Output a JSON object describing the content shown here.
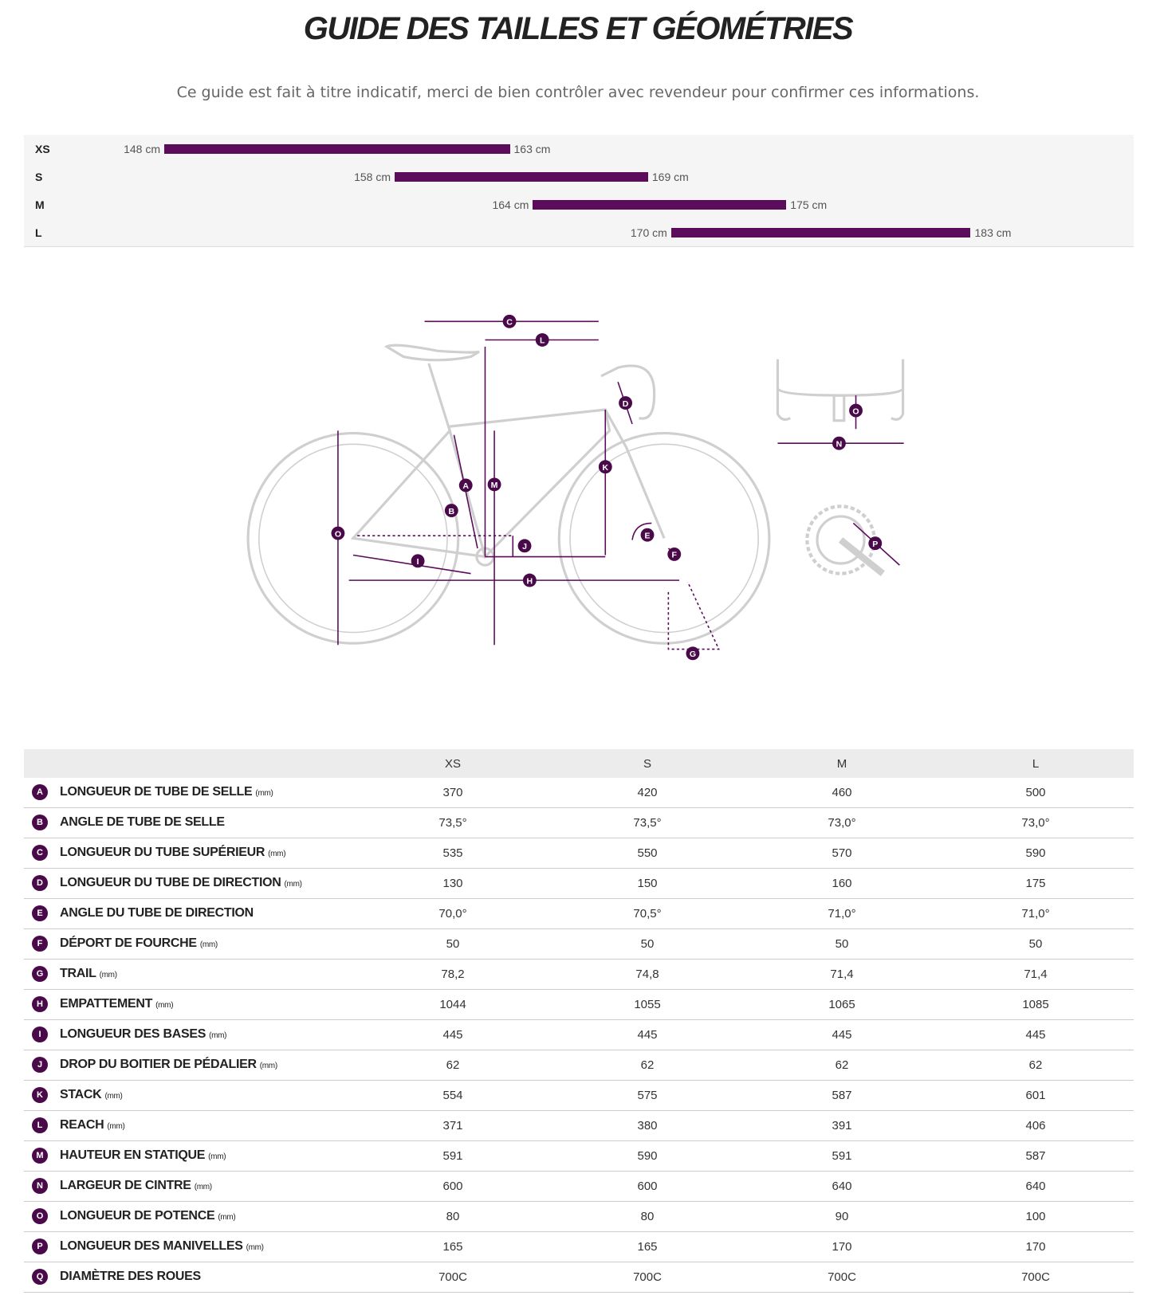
{
  "header": {
    "title": "GUIDE DES TAILLES ET GÉOMÉTRIES",
    "subtitle": "Ce guide est fait à titre indicatif, merci de bien contrôler avec revendeur pour confirmer ces informations."
  },
  "size_chart": {
    "rows": [
      {
        "size": "XS",
        "min": {
          "value": 148,
          "label": "148 cm"
        },
        "max": {
          "value": 163,
          "label": "163 cm"
        }
      },
      {
        "size": "S",
        "min": {
          "value": 158,
          "label": "158 cm"
        },
        "max": {
          "value": 169,
          "label": "169 cm"
        }
      },
      {
        "size": "M",
        "min": {
          "value": 164,
          "label": "164 cm"
        },
        "max": {
          "value": 175,
          "label": "175 cm"
        }
      },
      {
        "size": "L",
        "min": {
          "value": 170,
          "label": "170 cm"
        },
        "max": {
          "value": 183,
          "label": "183 cm"
        }
      }
    ]
  },
  "table": {
    "columns": [
      "XS",
      "S",
      "M",
      "L"
    ],
    "rows": [
      {
        "letter": "A",
        "label": "LONGUEUR DE TUBE DE SELLE",
        "unit": "(mm)",
        "values": [
          370,
          420,
          460,
          500
        ]
      },
      {
        "letter": "B",
        "label": "ANGLE DE TUBE DE SELLE",
        "values": [
          "73,5°",
          "73,5°",
          "73,0°",
          "73,0°"
        ]
      },
      {
        "letter": "C",
        "label": "LONGUEUR DU TUBE SUPÉRIEUR",
        "unit": "(mm)",
        "values": [
          535,
          550,
          570,
          590
        ]
      },
      {
        "letter": "D",
        "label": "LONGUEUR DU TUBE DE DIRECTION",
        "unit": "(mm)",
        "values": [
          130,
          150,
          160,
          175
        ]
      },
      {
        "letter": "E",
        "label": "ANGLE DU TUBE DE DIRECTION",
        "values": [
          "70,0°",
          "70,5°",
          "71,0°",
          "71,0°"
        ]
      },
      {
        "letter": "F",
        "label": "DÉPORT DE FOURCHE",
        "unit": "(mm)",
        "values": [
          50,
          50,
          50,
          50
        ]
      },
      {
        "letter": "G",
        "label": "TRAIL",
        "unit": "(mm)",
        "values": [
          "78,2",
          "74,8",
          "71,4",
          "71,4"
        ]
      },
      {
        "letter": "H",
        "label": "EMPATTEMENT",
        "unit": "(mm)",
        "values": [
          1044,
          1055,
          1065,
          1085
        ]
      },
      {
        "letter": "I",
        "label": "LONGUEUR DES BASES",
        "unit": "(mm)",
        "values": [
          445,
          445,
          445,
          445
        ]
      },
      {
        "letter": "J",
        "label": "DROP DU BOITIER DE PÉDALIER",
        "unit": "(mm)",
        "values": [
          62,
          62,
          62,
          62
        ]
      },
      {
        "letter": "K",
        "label": "STACK",
        "unit": "(mm)",
        "values": [
          554,
          575,
          587,
          601
        ]
      },
      {
        "letter": "L",
        "label": "REACH",
        "unit": "(mm)",
        "values": [
          371,
          380,
          391,
          406
        ]
      },
      {
        "letter": "M",
        "label": "HAUTEUR EN STATIQUE",
        "unit": "(mm)",
        "values": [
          591,
          590,
          591,
          587
        ]
      },
      {
        "letter": "N",
        "label": "LARGEUR DE CINTRE",
        "unit": "(mm)",
        "values": [
          600,
          600,
          640,
          640
        ]
      },
      {
        "letter": "O",
        "label": "LONGUEUR DE POTENCE",
        "unit": "(mm)",
        "values": [
          80,
          80,
          90,
          100
        ]
      },
      {
        "letter": "P",
        "label": "LONGUEUR DES MANIVELLES",
        "unit": "(mm)",
        "values": [
          165,
          165,
          170,
          170
        ]
      },
      {
        "letter": "Q",
        "label": "DIAMÈTRE DES ROUES",
        "values": [
          "700C",
          "700C",
          "700C",
          "700C"
        ]
      }
    ]
  }
}
